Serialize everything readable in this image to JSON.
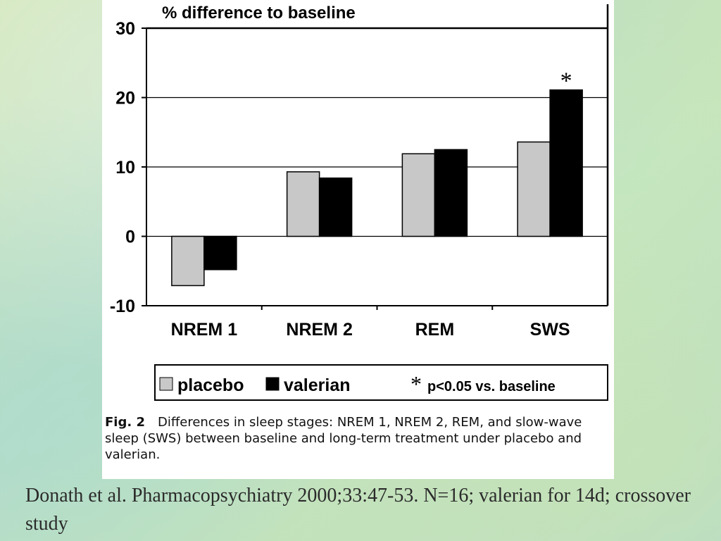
{
  "chart_data": {
    "type": "bar",
    "title": "% difference to baseline",
    "categories": [
      "NREM 1",
      "NREM 2",
      "REM",
      "SWS"
    ],
    "series": [
      {
        "name": "placebo",
        "values": [
          -7.1,
          9.3,
          11.9,
          13.6
        ],
        "color": "#c8c8c8"
      },
      {
        "name": "valerian",
        "values": [
          -4.8,
          8.4,
          12.5,
          21.1
        ],
        "color": "#000000"
      }
    ],
    "ylim": [
      -10,
      30
    ],
    "yticks": [
      30,
      20,
      10,
      0,
      -10
    ],
    "grid": true,
    "legend": "bottom",
    "annotations": [
      {
        "category": "SWS",
        "series": "valerian",
        "text": "*"
      }
    ],
    "significance_note": {
      "symbol": "*",
      "text": "p<0.05 vs. baseline"
    }
  },
  "caption": {
    "label": "Fig. 2",
    "text": "Differences in sleep stages: NREM 1, NREM 2, REM, and slow-wave sleep (SWS) between baseline and long-term treatment under placebo and valerian."
  },
  "footer": {
    "text": "Donath et al. Pharmacopsychiatry 2000;33:47-53. N=16; valerian for 14d; crossover study"
  }
}
